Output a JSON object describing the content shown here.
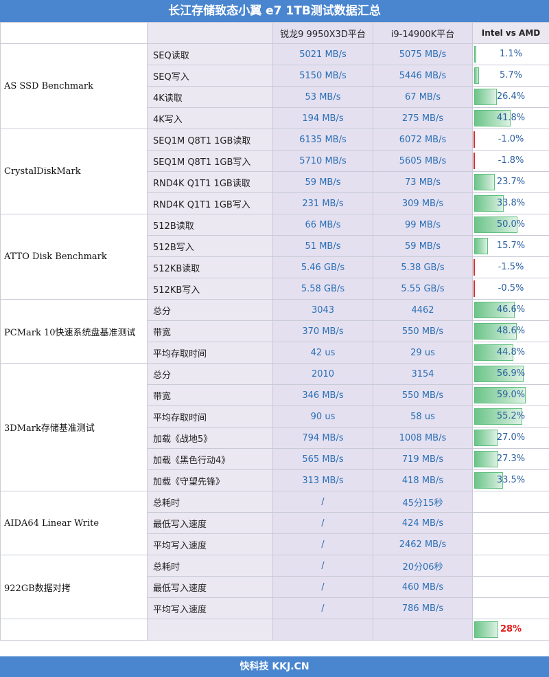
{
  "title": "长江存储致态小翼 e7 1TB测试数据汇总",
  "header": {
    "col_amd": "锐龙9 9950X3D平台",
    "col_intel": "i9-14900K平台",
    "col_pct": "Intel vs AMD"
  },
  "groups": [
    {
      "name": "AS SSD Benchmark",
      "rows": [
        {
          "metric": "SEQ读取",
          "amd": "5021 MB/s",
          "intel": "5075 MB/s",
          "pct": "1.1%",
          "value": 1.1
        },
        {
          "metric": "SEQ写入",
          "amd": "5150 MB/s",
          "intel": "5446 MB/s",
          "pct": "5.7%",
          "value": 5.7
        },
        {
          "metric": "4K读取",
          "amd": "53 MB/s",
          "intel": "67 MB/s",
          "pct": "26.4%",
          "value": 26.4
        },
        {
          "metric": "4K写入",
          "amd": "194 MB/s",
          "intel": "275 MB/s",
          "pct": "41.8%",
          "value": 41.8
        }
      ]
    },
    {
      "name": "CrystalDiskMark",
      "rows": [
        {
          "metric": "SEQ1M Q8T1 1GB读取",
          "amd": "6135 MB/s",
          "intel": "6072 MB/s",
          "pct": "-1.0%",
          "value": -1.0
        },
        {
          "metric": "SEQ1M Q8T1 1GB写入",
          "amd": "5710 MB/s",
          "intel": "5605 MB/s",
          "pct": "-1.8%",
          "value": -1.8
        },
        {
          "metric": "RND4K Q1T1 1GB读取",
          "amd": "59 MB/s",
          "intel": "73 MB/s",
          "pct": "23.7%",
          "value": 23.7
        },
        {
          "metric": "RND4K Q1T1 1GB写入",
          "amd": "231 MB/s",
          "intel": "309 MB/s",
          "pct": "33.8%",
          "value": 33.8
        }
      ]
    },
    {
      "name": "ATTO Disk Benchmark",
      "rows": [
        {
          "metric": "512B读取",
          "amd": "66 MB/s",
          "intel": "99 MB/s",
          "pct": "50.0%",
          "value": 50.0
        },
        {
          "metric": "512B写入",
          "amd": "51 MB/s",
          "intel": "59 MB/s",
          "pct": "15.7%",
          "value": 15.7
        },
        {
          "metric": "512KB读取",
          "amd": "5.46 GB/s",
          "intel": "5.38 GB/s",
          "pct": "-1.5%",
          "value": -1.5
        },
        {
          "metric": "512KB写入",
          "amd": "5.58 GB/s",
          "intel": "5.55 GB/s",
          "pct": "-0.5%",
          "value": -0.5
        }
      ]
    },
    {
      "name": "PCMark 10快速系统盘基准测试",
      "rows": [
        {
          "metric": "总分",
          "amd": "3043",
          "intel": "4462",
          "pct": "46.6%",
          "value": 46.6
        },
        {
          "metric": "带宽",
          "amd": "370 MB/s",
          "intel": "550 MB/s",
          "pct": "48.6%",
          "value": 48.6
        },
        {
          "metric": "平均存取时间",
          "amd": "42 us",
          "intel": "29 us",
          "pct": "44.8%",
          "value": 44.8
        }
      ]
    },
    {
      "name": "3DMark存储基准测试",
      "rows": [
        {
          "metric": "总分",
          "amd": "2010",
          "intel": "3154",
          "pct": "56.9%",
          "value": 56.9
        },
        {
          "metric": "带宽",
          "amd": "346 MB/s",
          "intel": "550 MB/s",
          "pct": "59.0%",
          "value": 59.0
        },
        {
          "metric": "平均存取时间",
          "amd": "90 us",
          "intel": "58 us",
          "pct": "55.2%",
          "value": 55.2
        },
        {
          "metric": "加载《战地5》",
          "amd": "794 MB/s",
          "intel": "1008 MB/s",
          "pct": "27.0%",
          "value": 27.0
        },
        {
          "metric": "加载《黑色行动4》",
          "amd": "565 MB/s",
          "intel": "719 MB/s",
          "pct": "27.3%",
          "value": 27.3
        },
        {
          "metric": "加载《守望先锋》",
          "amd": "313 MB/s",
          "intel": "418 MB/s",
          "pct": "33.5%",
          "value": 33.5
        }
      ]
    },
    {
      "name": "AIDA64 Linear Write",
      "rows": [
        {
          "metric": "总耗时",
          "amd": "/",
          "intel": "45分15秒",
          "pct": "",
          "value": null
        },
        {
          "metric": "最低写入速度",
          "amd": "/",
          "intel": "424 MB/s",
          "pct": "",
          "value": null
        },
        {
          "metric": "平均写入速度",
          "amd": "/",
          "intel": "2462 MB/s",
          "pct": "",
          "value": null
        }
      ]
    },
    {
      "name": "922GB数据对拷",
      "rows": [
        {
          "metric": "总耗时",
          "amd": "/",
          "intel": "20分06秒",
          "pct": "",
          "value": null
        },
        {
          "metric": "最低写入速度",
          "amd": "/",
          "intel": "460 MB/s",
          "pct": "",
          "value": null
        },
        {
          "metric": "平均写入速度",
          "amd": "/",
          "intel": "786 MB/s",
          "pct": "",
          "value": null
        }
      ]
    }
  ],
  "total": {
    "pct": "28%",
    "value": 28
  },
  "footer": "快科技 KKJ.CN",
  "colors": {
    "header_bg": "#4a86cf",
    "value_text": "#2a6fb5",
    "bar_green": "#6cc489",
    "negative_red": "#d92b2b"
  }
}
